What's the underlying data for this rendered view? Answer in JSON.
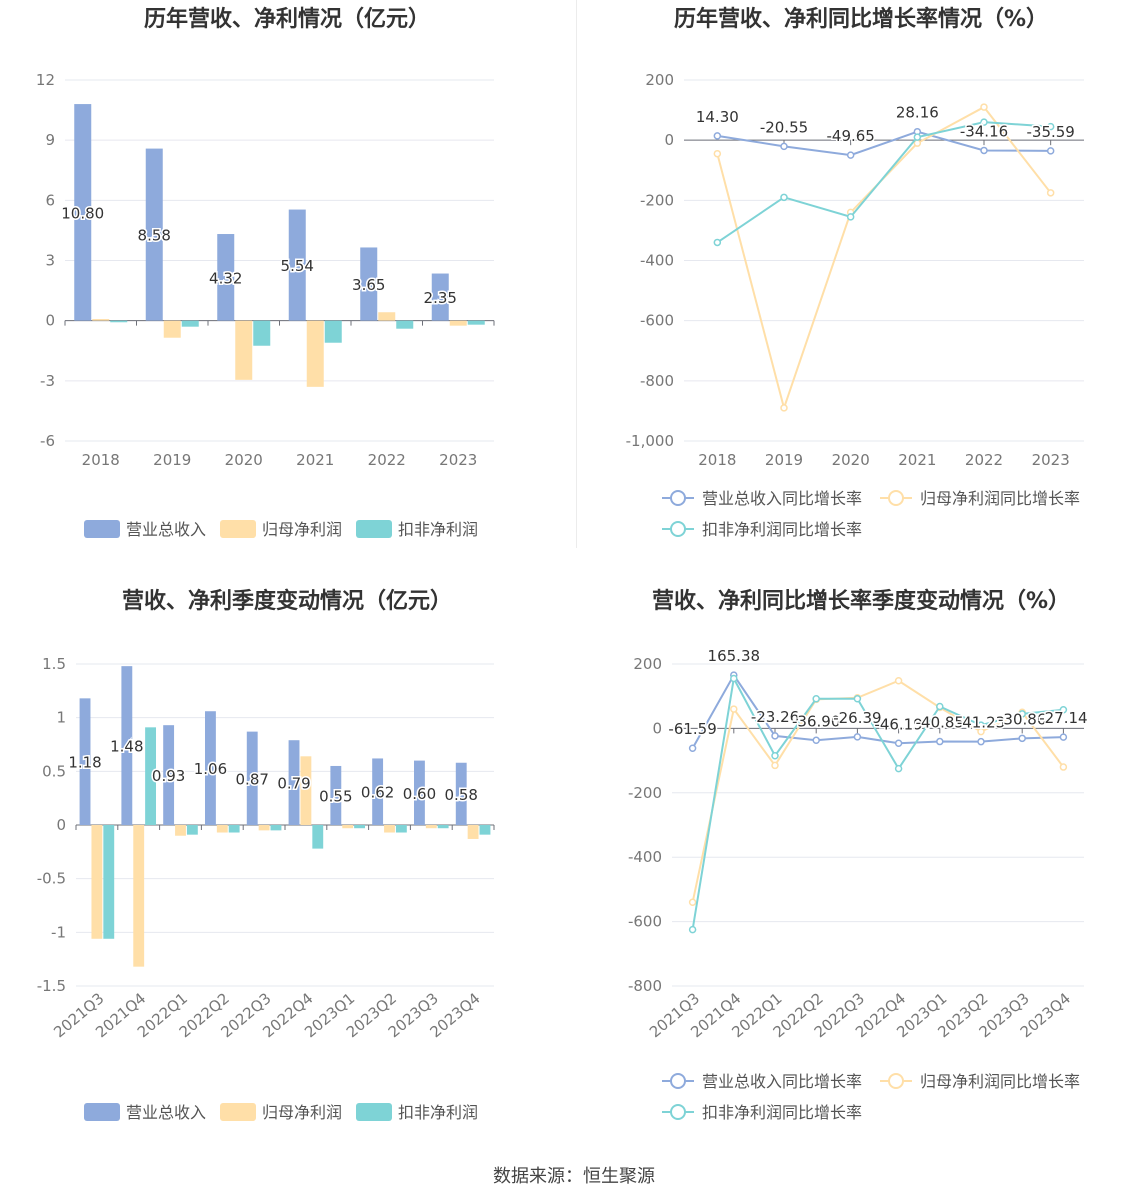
{
  "footer": {
    "source": "数据来源：恒生聚源"
  },
  "colors": {
    "revenue": "#8eaadc",
    "parent_profit": "#ffdfa8",
    "deducted_profit": "#7ed3d6",
    "axis_text": "#777777",
    "grid": "#e6e8ef",
    "title": "#333333"
  },
  "chart_data": [
    {
      "id": "annual-amount",
      "type": "bar",
      "title": "历年营收、净利情况（亿元）",
      "categories": [
        "2018",
        "2019",
        "2020",
        "2021",
        "2022",
        "2023"
      ],
      "ylim": [
        -6,
        12
      ],
      "yticks": [
        12,
        9,
        6,
        3,
        0,
        -3,
        -6
      ],
      "ytick_labels": [
        "12",
        "9",
        "6",
        "3",
        "0",
        "-3",
        "-6"
      ],
      "series": [
        {
          "name": "营业总收入",
          "color_key": "revenue",
          "values": [
            10.8,
            8.58,
            4.32,
            5.54,
            3.65,
            2.35
          ],
          "labels": [
            "10.80",
            "8.58",
            "4.32",
            "5.54",
            "3.65",
            "2.35"
          ]
        },
        {
          "name": "归母净利润",
          "color_key": "parent_profit",
          "values": [
            0.08,
            -0.85,
            -2.95,
            -3.3,
            0.42,
            -0.25
          ]
        },
        {
          "name": "扣非净利润",
          "color_key": "deducted_profit",
          "values": [
            -0.08,
            -0.3,
            -1.25,
            -1.1,
            -0.4,
            -0.2
          ]
        }
      ]
    },
    {
      "id": "annual-growth",
      "type": "line",
      "title": "历年营收、净利同比增长率情况（%）",
      "categories": [
        "2018",
        "2019",
        "2020",
        "2021",
        "2022",
        "2023"
      ],
      "ylim": [
        -1000,
        200
      ],
      "yticks": [
        200,
        0,
        -200,
        -400,
        -600,
        -800,
        -1000
      ],
      "ytick_labels": [
        "200",
        "0",
        "-200",
        "-400",
        "-600",
        "-800",
        "-1,000"
      ],
      "series": [
        {
          "name": "营业总收入同比增长率",
          "color_key": "revenue",
          "values": [
            14.3,
            -20.55,
            -49.65,
            28.16,
            -34.16,
            -35.59
          ],
          "labels": [
            "14.30",
            "-20.55",
            "-49.65",
            "28.16",
            "-34.16",
            "-35.59"
          ]
        },
        {
          "name": "归母净利润同比增长率",
          "color_key": "parent_profit",
          "values": [
            -45,
            -890,
            -240,
            -10,
            110,
            -175
          ]
        },
        {
          "name": "扣非净利润同比增长率",
          "color_key": "deducted_profit",
          "values": [
            -340,
            -190,
            -255,
            10,
            60,
            45
          ]
        }
      ]
    },
    {
      "id": "quarter-amount",
      "type": "bar",
      "title": "营收、净利季度变动情况（亿元）",
      "categories": [
        "2021Q3",
        "2021Q4",
        "2022Q1",
        "2022Q2",
        "2022Q3",
        "2022Q4",
        "2023Q1",
        "2023Q2",
        "2023Q3",
        "2023Q4"
      ],
      "ylim": [
        -1.5,
        1.5
      ],
      "yticks": [
        1.5,
        1,
        0.5,
        0,
        -0.5,
        -1,
        -1.5
      ],
      "ytick_labels": [
        "1.5",
        "1",
        "0.5",
        "0",
        "-0.5",
        "-1",
        "-1.5"
      ],
      "series": [
        {
          "name": "营业总收入",
          "color_key": "revenue",
          "values": [
            1.18,
            1.48,
            0.93,
            1.06,
            0.87,
            0.79,
            0.55,
            0.62,
            0.6,
            0.58
          ],
          "labels": [
            "1.18",
            "1.48",
            "0.93",
            "1.06",
            "0.87",
            "0.79",
            "0.55",
            "0.62",
            "0.60",
            "0.58"
          ]
        },
        {
          "name": "归母净利润",
          "color_key": "parent_profit",
          "values": [
            -1.06,
            -1.32,
            -0.1,
            -0.07,
            -0.05,
            0.64,
            -0.03,
            -0.07,
            -0.03,
            -0.13
          ]
        },
        {
          "name": "扣非净利润",
          "color_key": "deducted_profit",
          "values": [
            -1.06,
            0.91,
            -0.09,
            -0.07,
            -0.05,
            -0.22,
            -0.03,
            -0.07,
            -0.03,
            -0.09
          ]
        }
      ]
    },
    {
      "id": "quarter-growth",
      "type": "line",
      "title": "营收、净利同比增长率季度变动情况（%）",
      "categories": [
        "2021Q3",
        "2021Q4",
        "2022Q1",
        "2022Q2",
        "2022Q3",
        "2022Q4",
        "2023Q1",
        "2023Q2",
        "2023Q3",
        "2023Q4"
      ],
      "ylim": [
        -800,
        200
      ],
      "yticks": [
        200,
        0,
        -200,
        -400,
        -600,
        -800
      ],
      "ytick_labels": [
        "200",
        "0",
        "-200",
        "-400",
        "-600",
        "-800"
      ],
      "series": [
        {
          "name": "营业总收入同比增长率",
          "color_key": "revenue",
          "values": [
            -61.59,
            165.38,
            -23.26,
            -36.9,
            -26.39,
            -46.19,
            -40.85,
            -41.23,
            -30.86,
            -27.14
          ],
          "labels": [
            "-61.59",
            "165.38",
            "-23.26",
            "-36.90",
            "-26.39",
            "-46.19",
            "-40.85",
            "-41.23",
            "-30.86",
            "-27.14"
          ]
        },
        {
          "name": "归母净利润同比增长率",
          "color_key": "parent_profit",
          "values": [
            -540,
            60,
            -115,
            90,
            95,
            148,
            65,
            -10,
            50,
            -120
          ]
        },
        {
          "name": "扣非净利润同比增长率",
          "color_key": "deducted_profit",
          "values": [
            -625,
            155,
            -85,
            92,
            92,
            -125,
            68,
            10,
            45,
            58
          ]
        }
      ]
    }
  ]
}
